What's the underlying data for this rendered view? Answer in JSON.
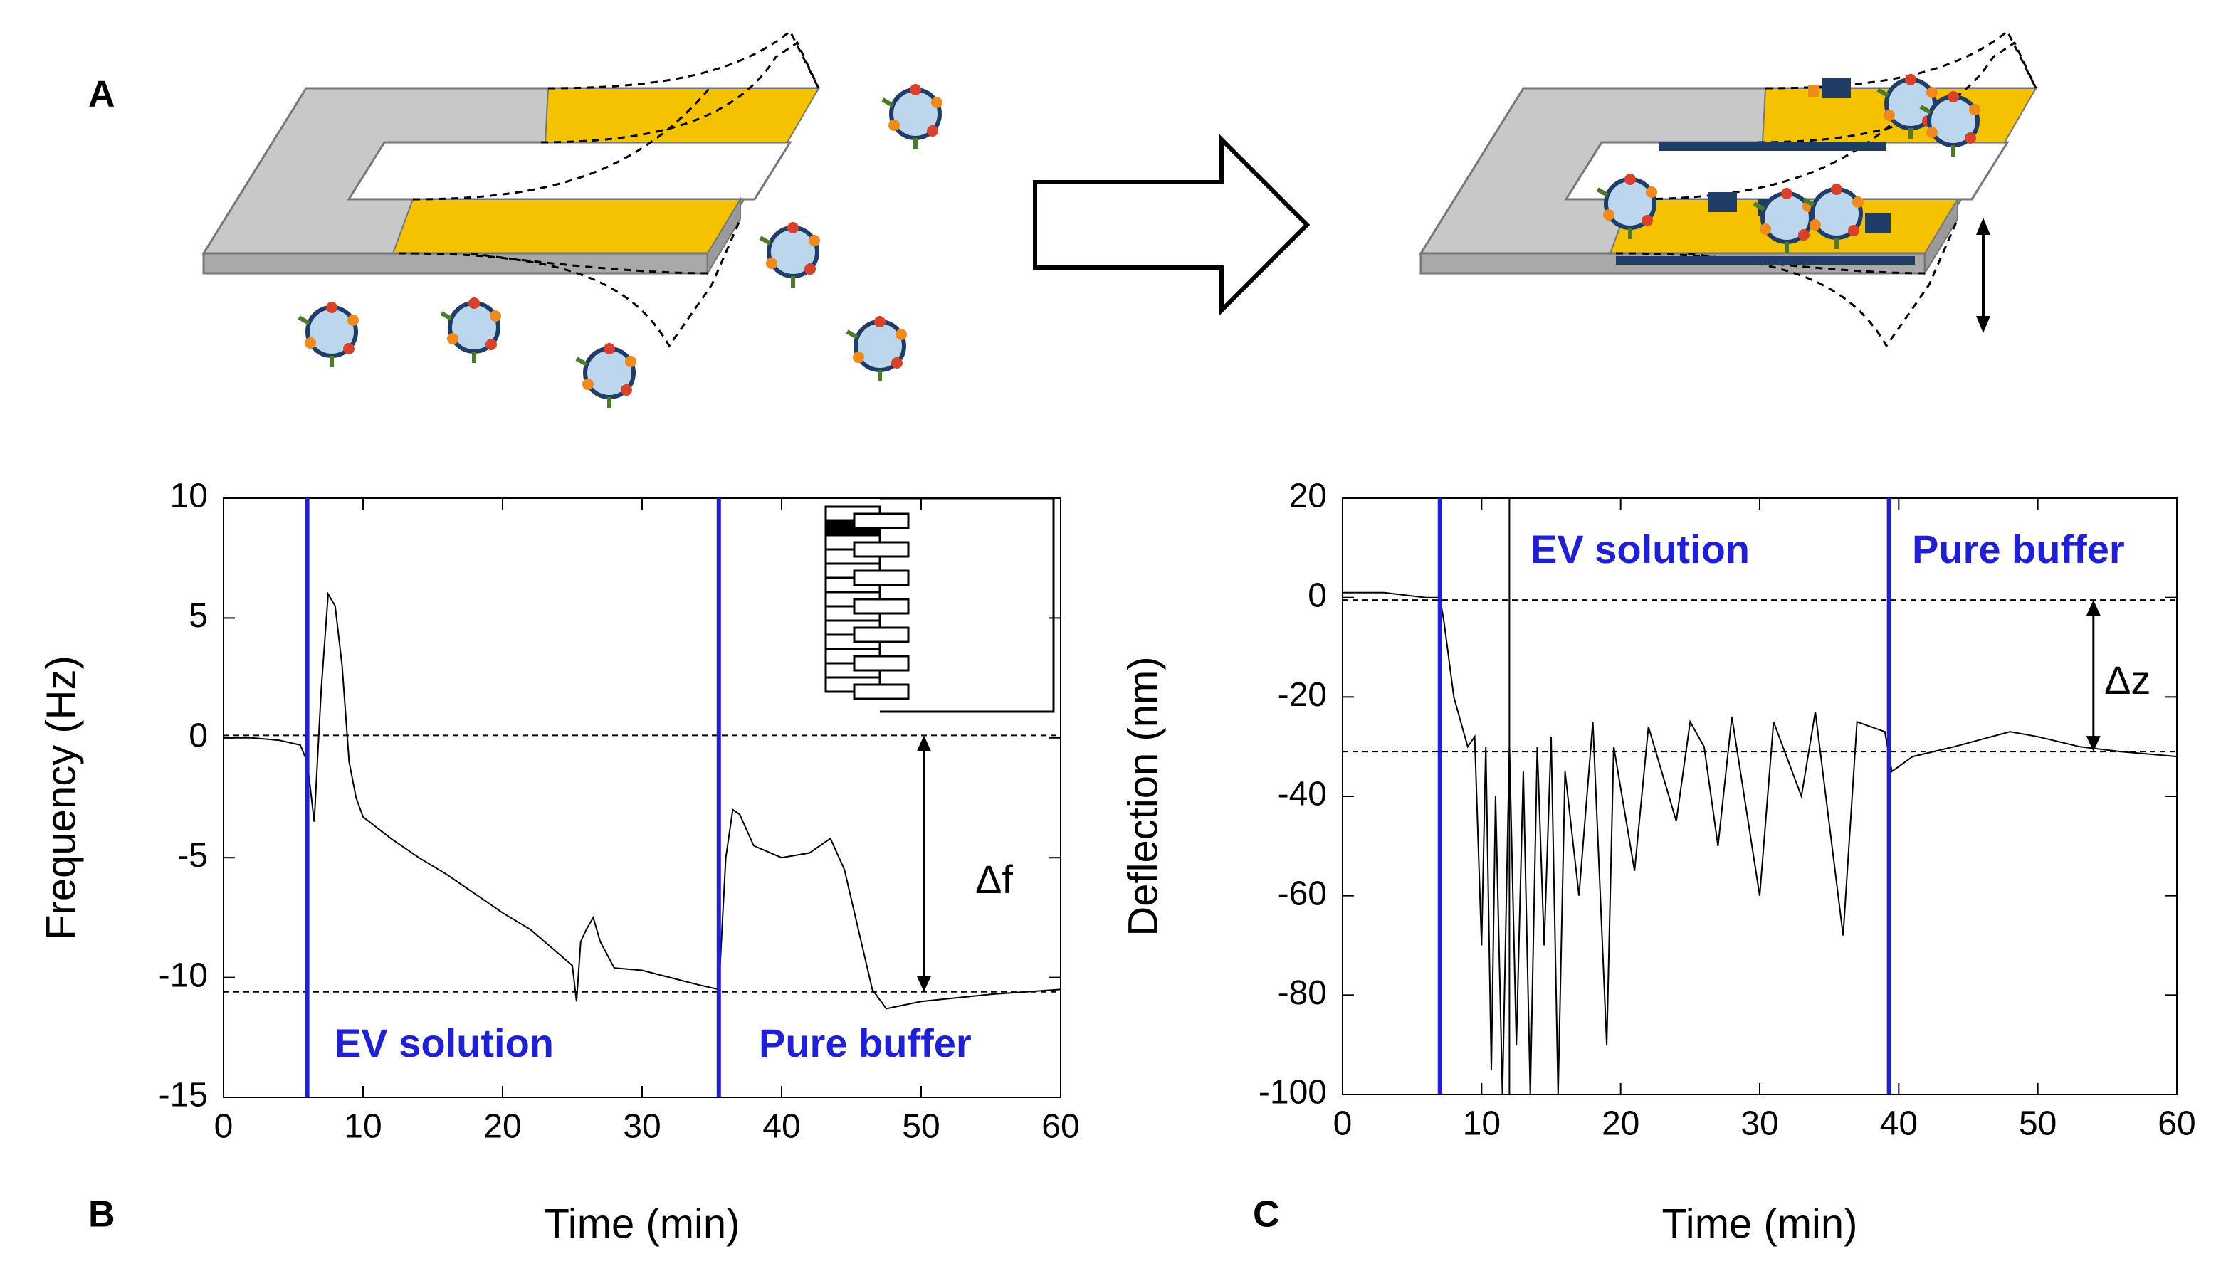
{
  "panel_labels": [
    "A",
    "B",
    "C"
  ],
  "chart_data": [
    {
      "type": "line",
      "xlabel": "Time (min)",
      "ylabel": "Frequency (Hz)",
      "xlim": [
        0,
        60
      ],
      "xticks": [
        0,
        10,
        20,
        30,
        40,
        50,
        60
      ],
      "ylim": [
        -15,
        10
      ],
      "yticks": [
        -15,
        -10,
        -5,
        0,
        5,
        10
      ],
      "vlines": [
        6,
        35.5
      ],
      "vline_color": "#1f1fd6",
      "hlines": [
        0.1,
        -10.6
      ],
      "x": [
        0,
        2,
        4,
        5.5,
        6,
        6.5,
        7,
        7.5,
        8,
        8.5,
        9,
        9.5,
        10,
        12,
        14,
        16,
        18,
        20,
        22,
        24,
        25,
        25.3,
        25.6,
        26,
        26.5,
        27,
        28,
        30,
        32,
        34,
        35.5,
        36,
        36.5,
        37,
        38,
        40,
        42,
        43.5,
        44.5,
        45.5,
        46.5,
        47.5,
        50,
        55,
        60
      ],
      "series": [
        {
          "color": "#000000",
          "values": [
            0,
            0,
            -0.1,
            -0.3,
            -1,
            -3.5,
            2,
            6,
            5.5,
            3,
            -1,
            -2.5,
            -3.3,
            -4.2,
            -5,
            -5.7,
            -6.5,
            -7.3,
            -8,
            -9,
            -9.5,
            -11,
            -8.5,
            -8,
            -7.5,
            -8.5,
            -9.6,
            -9.7,
            -10,
            -10.3,
            -10.5,
            -5,
            -3,
            -3.2,
            -4.5,
            -5,
            -4.8,
            -4.2,
            -5.5,
            -8,
            -10.5,
            -11.3,
            -11,
            -10.7,
            -10.5
          ]
        }
      ],
      "annotations": [
        "EV solution",
        "Pure buffer",
        "Δf"
      ]
    },
    {
      "type": "line",
      "xlabel": "Time (min)",
      "ylabel": "Deflection (nm)",
      "xlim": [
        0,
        60
      ],
      "xticks": [
        0,
        10,
        20,
        30,
        40,
        50,
        60
      ],
      "ylim": [
        -100,
        20
      ],
      "yticks": [
        -100,
        -80,
        -60,
        -40,
        -20,
        0,
        20
      ],
      "vlines": [
        7,
        39.3
      ],
      "vline_color": "#1f1fd6",
      "marker_line": 12,
      "hlines": [
        -0.5,
        -31
      ],
      "x": [
        0,
        3,
        6,
        7,
        7.3,
        8,
        8.5,
        9,
        9.5,
        10,
        10.3,
        10.7,
        11,
        11.5,
        12,
        12.5,
        13,
        13.5,
        14,
        14.5,
        15,
        15.5,
        16,
        17,
        18,
        19,
        19.5,
        21,
        22,
        24,
        25,
        26,
        27,
        28,
        30,
        31,
        33,
        34,
        36,
        37,
        39,
        39.5,
        41,
        44,
        48,
        50,
        53,
        56,
        60
      ],
      "series": [
        {
          "color": "#000000",
          "values": [
            1,
            1,
            0,
            0,
            -5,
            -20,
            -25,
            -30,
            -28,
            -70,
            -30,
            -95,
            -40,
            -100,
            -30,
            -90,
            -35,
            -100,
            -30,
            -70,
            -28,
            -100,
            -35,
            -60,
            -25,
            -90,
            -30,
            -55,
            -26,
            -45,
            -25,
            -30,
            -50,
            -24,
            -60,
            -25,
            -40,
            -23,
            -68,
            -25,
            -27,
            -35,
            -32,
            -30,
            -27,
            -28,
            -30,
            -31,
            -32
          ]
        }
      ],
      "annotations": [
        "EV solution",
        "Pure buffer",
        "Δz"
      ]
    }
  ]
}
